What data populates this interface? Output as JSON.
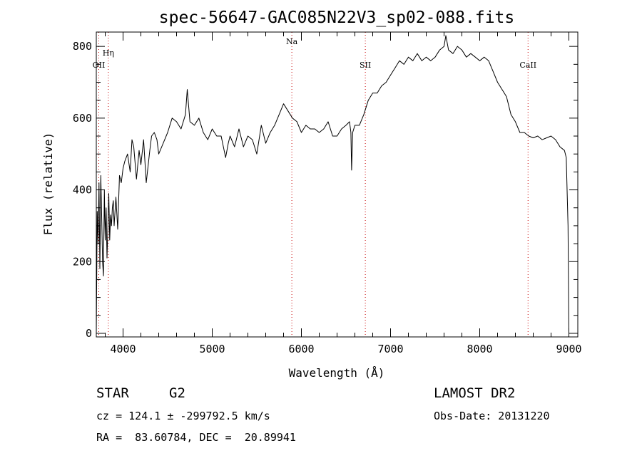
{
  "chart_data": {
    "type": "line",
    "title": "spec-56647-GAC085N22V3_sp02-088.fits",
    "xlabel": "Wavelength (Å)",
    "ylabel": "Flux (relative)",
    "xlim": [
      3700,
      9100
    ],
    "ylim": [
      -10,
      840
    ],
    "xticks": [
      4000,
      5000,
      6000,
      7000,
      8000,
      9000
    ],
    "yticks": [
      0,
      200,
      400,
      600,
      800
    ],
    "grid": false,
    "series": [
      {
        "x": [
          3700,
          3710,
          3720,
          3730,
          3740,
          3750,
          3760,
          3770,
          3780,
          3790,
          3800,
          3810,
          3820,
          3830,
          3840,
          3850,
          3860,
          3870,
          3880,
          3890,
          3900,
          3920,
          3940,
          3960,
          3980,
          4000,
          4020,
          4050,
          4080,
          4100,
          4120,
          4150,
          4180,
          4200,
          4230,
          4260,
          4300,
          4320,
          4350,
          4380,
          4400,
          4450,
          4500,
          4550,
          4600,
          4650,
          4700,
          4720,
          4750,
          4800,
          4850,
          4900,
          4950,
          5000,
          5050,
          5100,
          5150,
          5180,
          5200,
          5250,
          5300,
          5350,
          5400,
          5450,
          5500,
          5550,
          5600,
          5650,
          5700,
          5750,
          5800,
          5850,
          5900,
          5950,
          6000,
          6050,
          6100,
          6150,
          6200,
          6250,
          6300,
          6350,
          6400,
          6450,
          6500,
          6540,
          6555,
          6563,
          6575,
          6600,
          6650,
          6700,
          6750,
          6800,
          6850,
          6900,
          6950,
          7000,
          7050,
          7100,
          7150,
          7200,
          7250,
          7300,
          7350,
          7400,
          7450,
          7500,
          7550,
          7600,
          7620,
          7650,
          7700,
          7750,
          7800,
          7850,
          7900,
          7950,
          8000,
          8050,
          8100,
          8150,
          8200,
          8250,
          8300,
          8350,
          8400,
          8450,
          8500,
          8550,
          8600,
          8650,
          8700,
          8750,
          8800,
          8850,
          8900,
          8950,
          8970,
          8990,
          9000
        ],
        "y": [
          0,
          340,
          250,
          420,
          180,
          440,
          330,
          200,
          160,
          400,
          260,
          350,
          210,
          300,
          390,
          260,
          330,
          300,
          350,
          370,
          300,
          380,
          290,
          440,
          420,
          460,
          480,
          500,
          450,
          540,
          520,
          430,
          510,
          470,
          540,
          420,
          510,
          550,
          560,
          540,
          500,
          530,
          560,
          600,
          590,
          570,
          610,
          680,
          590,
          580,
          600,
          560,
          540,
          570,
          550,
          550,
          490,
          530,
          550,
          520,
          570,
          520,
          550,
          540,
          500,
          580,
          530,
          560,
          580,
          610,
          640,
          620,
          600,
          590,
          560,
          580,
          570,
          570,
          560,
          570,
          590,
          550,
          550,
          570,
          580,
          590,
          560,
          455,
          560,
          580,
          580,
          610,
          650,
          670,
          670,
          690,
          700,
          720,
          740,
          760,
          750,
          770,
          760,
          780,
          760,
          770,
          760,
          770,
          790,
          800,
          830,
          790,
          780,
          800,
          790,
          770,
          780,
          770,
          760,
          770,
          760,
          730,
          700,
          680,
          660,
          610,
          590,
          560,
          560,
          550,
          545,
          550,
          540,
          545,
          550,
          540,
          520,
          510,
          490,
          300,
          0
        ],
        "color": "#000000"
      }
    ],
    "line_markers": [
      {
        "wavelength": 3728,
        "label": "OII"
      },
      {
        "wavelength": 3835,
        "label": "Hη"
      },
      {
        "wavelength": 5893,
        "label": "Na"
      },
      {
        "wavelength": 6717,
        "label": "SII"
      },
      {
        "wavelength": 8542,
        "label": "CaII"
      }
    ],
    "marker_color": "#c80000"
  },
  "info": {
    "class": "STAR",
    "subclass": "G2",
    "survey": "LAMOST DR2",
    "cz": "cz = 124.1 ± -299792.5 km/s",
    "obs_date": "Obs-Date: 20131220",
    "coords": "RA =  83.60784, DEC =  20.89941"
  }
}
